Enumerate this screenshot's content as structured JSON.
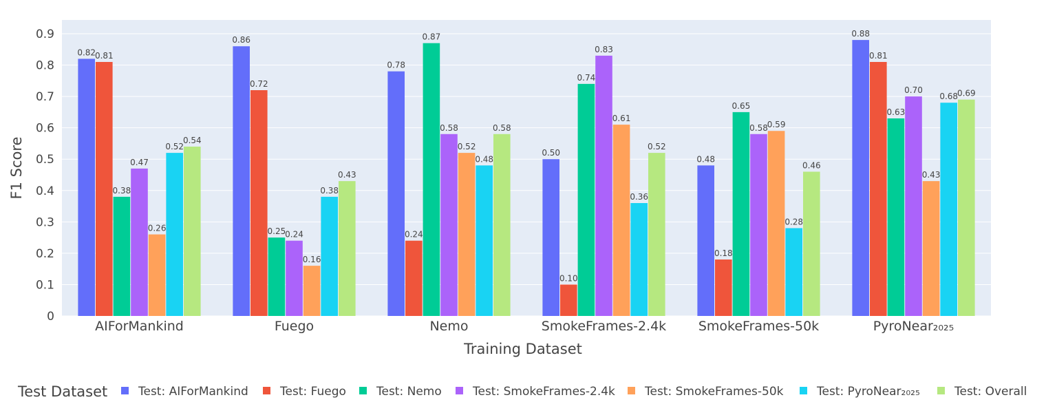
{
  "chart_data": {
    "type": "bar",
    "xlabel": "Training Dataset",
    "ylabel": "F1 Score",
    "ylim": [
      0,
      0.9
    ],
    "yticks": [
      0,
      0.1,
      0.2,
      0.3,
      0.4,
      0.5,
      0.6,
      0.7,
      0.8,
      0.9
    ],
    "ytick_labels": [
      "0",
      "0.1",
      "0.2",
      "0.3",
      "0.4",
      "0.5",
      "0.6",
      "0.7",
      "0.8",
      "0.9"
    ],
    "categories": [
      "AIForMankind",
      "Fuego",
      "Nemo",
      "SmokeFrames-2.4k",
      "SmokeFrames-50k",
      "PyroNear₂₀₂₅"
    ],
    "legend_title": "Test Dataset",
    "legend_position": "bottom",
    "series": [
      {
        "name": "Test: AIForMankind",
        "color": "#636efa",
        "values": [
          0.82,
          0.86,
          0.78,
          0.5,
          0.48,
          0.88
        ],
        "labels": [
          "0.82",
          "0.86",
          "0.78",
          "0.50",
          "0.48",
          "0.88"
        ]
      },
      {
        "name": "Test: Fuego",
        "color": "#ef553b",
        "values": [
          0.81,
          0.72,
          0.24,
          0.1,
          0.18,
          0.81
        ],
        "labels": [
          "0.81",
          "0.72",
          "0.24",
          "0.10",
          "0.18",
          "0.81"
        ]
      },
      {
        "name": "Test: Nemo",
        "color": "#00cc96",
        "values": [
          0.38,
          0.25,
          0.87,
          0.74,
          0.65,
          0.63
        ],
        "labels": [
          "0.38",
          "0.25",
          "0.87",
          "0.74",
          "0.65",
          "0.63"
        ]
      },
      {
        "name": "Test: SmokeFrames-2.4k",
        "color": "#ab63fa",
        "values": [
          0.47,
          0.24,
          0.58,
          0.83,
          0.58,
          0.7
        ],
        "labels": [
          "0.47",
          "0.24",
          "0.58",
          "0.83",
          "0.58",
          "0.70"
        ]
      },
      {
        "name": "Test: SmokeFrames-50k",
        "color": "#ffa15a",
        "values": [
          0.26,
          0.16,
          0.52,
          0.61,
          0.59,
          0.43
        ],
        "labels": [
          "0.26",
          "0.16",
          "0.52",
          "0.61",
          "0.59",
          "0.43"
        ]
      },
      {
        "name": "Test: PyroNear₂₀₂₅",
        "color": "#19d3f3",
        "values": [
          0.52,
          0.38,
          0.48,
          0.36,
          0.28,
          0.68
        ],
        "labels": [
          "0.52",
          "0.38",
          "0.48",
          "0.36",
          "0.28",
          "0.68"
        ]
      },
      {
        "name": "Test: Overall",
        "color": "#b6e880",
        "values": [
          0.54,
          0.43,
          0.58,
          0.52,
          0.46,
          0.69
        ],
        "labels": [
          "0.54",
          "0.43",
          "0.58",
          "0.52",
          "0.46",
          "0.69"
        ]
      }
    ],
    "plot_background": "#e5ecf6",
    "gridline_color": "#ffffff"
  }
}
